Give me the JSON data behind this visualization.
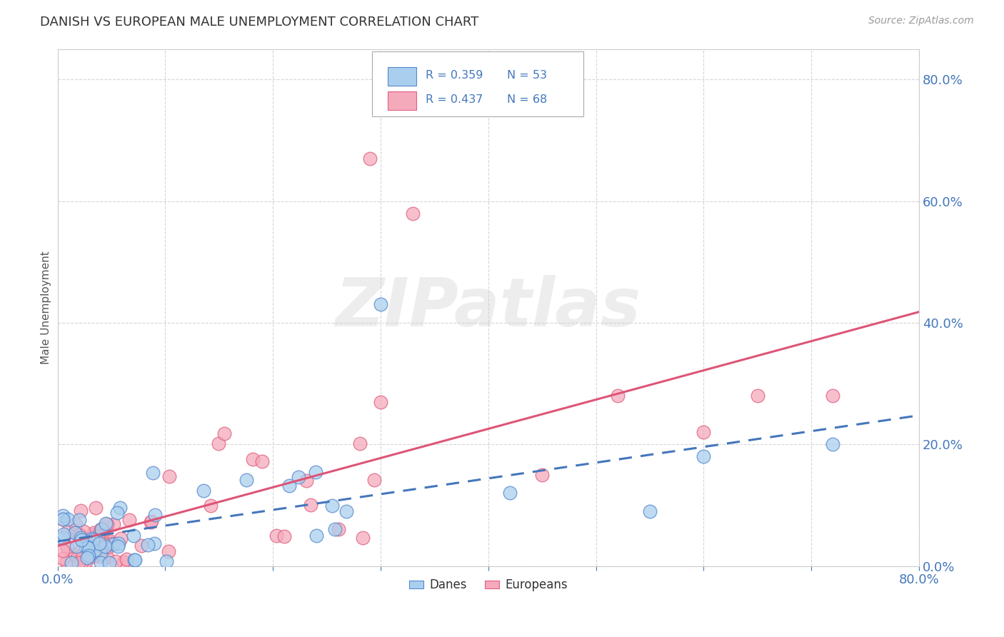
{
  "title": "DANISH VS EUROPEAN MALE UNEMPLOYMENT CORRELATION CHART",
  "source": "Source: ZipAtlas.com",
  "ylabel": "Male Unemployment",
  "ytick_values": [
    0.0,
    0.2,
    0.4,
    0.6,
    0.8
  ],
  "ytick_labels": [
    "0.0%",
    "20.0%",
    "40.0%",
    "60.0%",
    "80.0%"
  ],
  "xlim": [
    0.0,
    0.8
  ],
  "ylim": [
    0.0,
    0.85
  ],
  "danes_color": "#aacfee",
  "europeans_color": "#f5aabc",
  "danes_edge_color": "#5588cc",
  "europeans_edge_color": "#e06080",
  "danes_line_color": "#4477bb",
  "europeans_line_color": "#dd5577",
  "danes_R": 0.359,
  "danes_N": 53,
  "europeans_R": 0.437,
  "europeans_N": 68,
  "watermark": "ZIPatlas",
  "legend_danes": "Danes",
  "legend_europeans": "Europeans",
  "background_color": "#ffffff",
  "grid_color": "#cccccc",
  "title_color": "#333333",
  "source_color": "#999999",
  "tick_color": "#4477bb"
}
